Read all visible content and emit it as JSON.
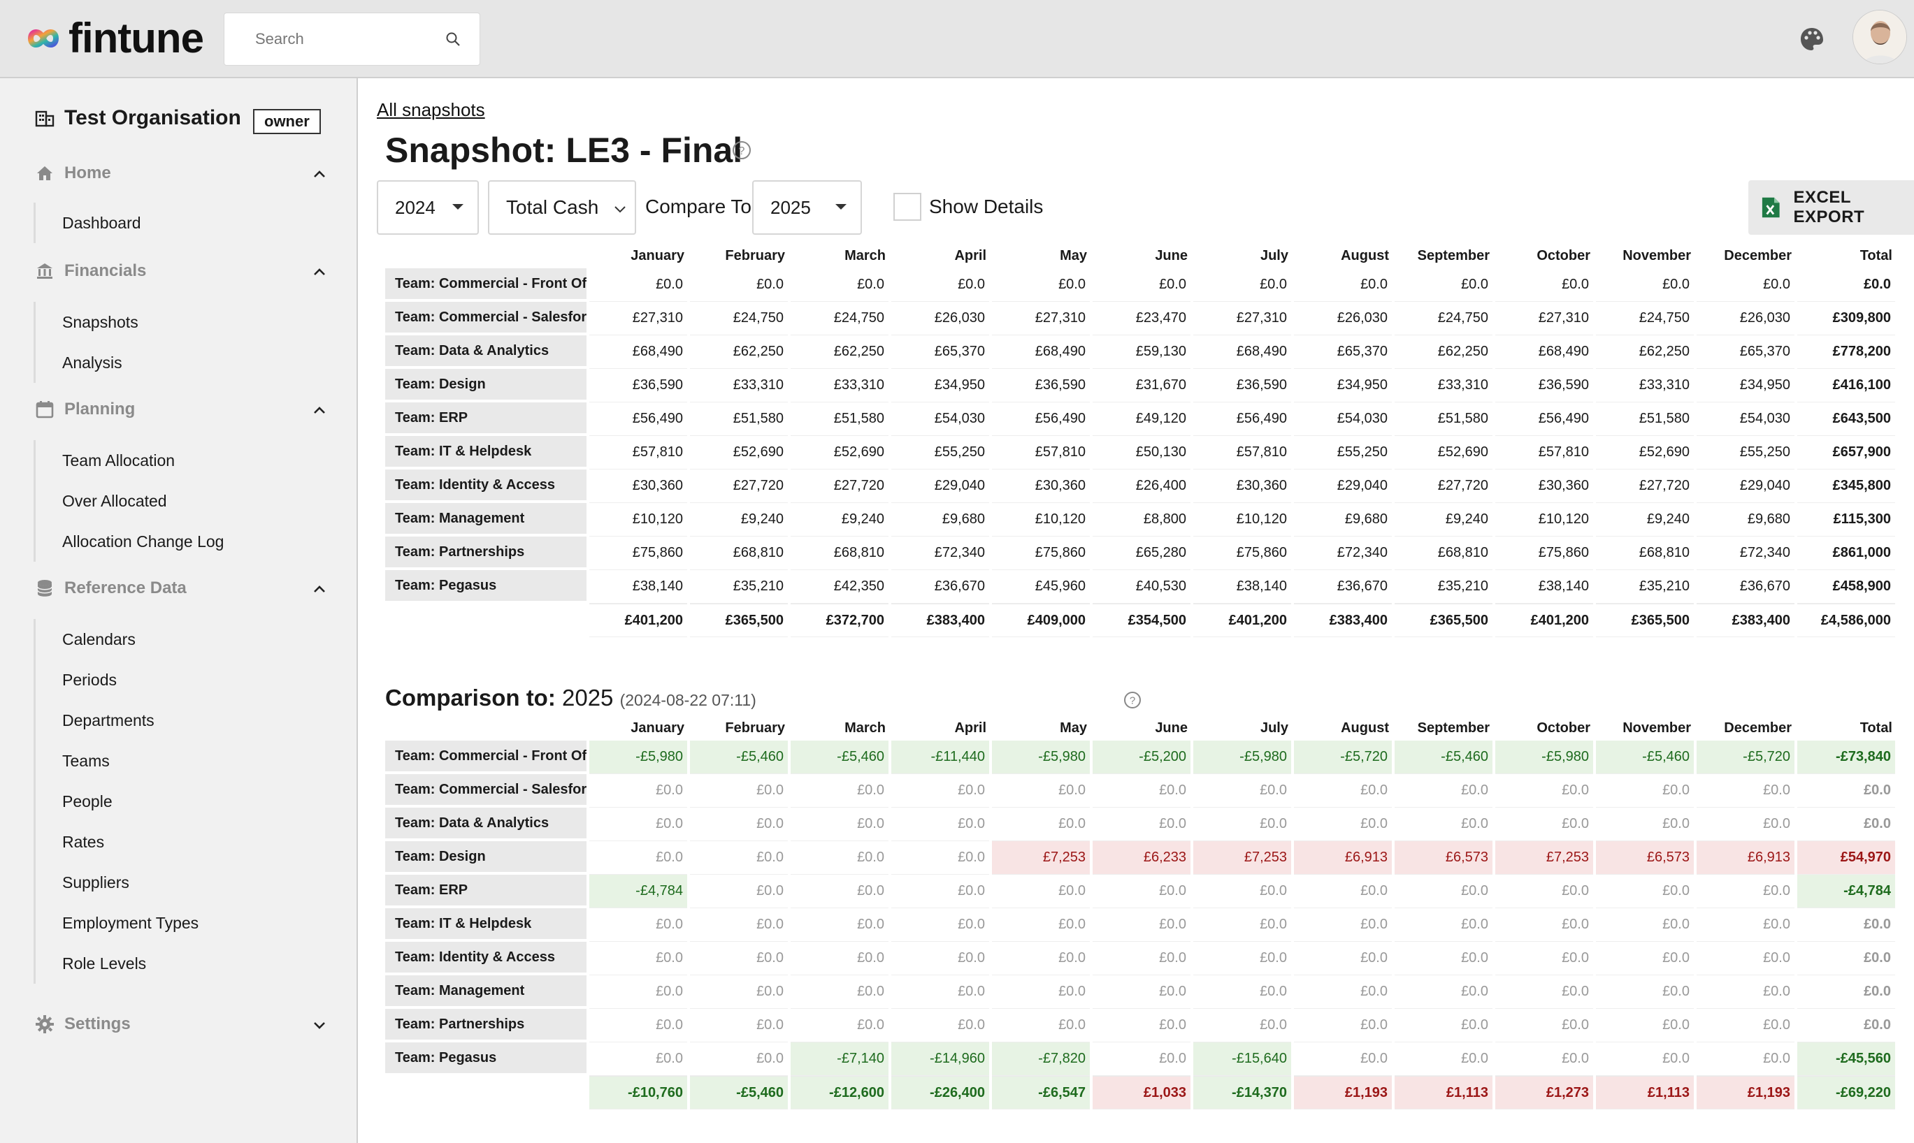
{
  "header": {
    "app_name": "fintune",
    "search_placeholder": "Search"
  },
  "sidebar": {
    "org_name": "Test Organisation",
    "org_role": "owner",
    "sections": [
      {
        "label": "Home",
        "icon": "home-icon",
        "items": [
          "Dashboard"
        ]
      },
      {
        "label": "Financials",
        "icon": "bank-icon",
        "items": [
          "Snapshots",
          "Analysis"
        ]
      },
      {
        "label": "Planning",
        "icon": "calendar-icon",
        "items": [
          "Team Allocation",
          "Over Allocated",
          "Allocation Change Log"
        ]
      },
      {
        "label": "Reference Data",
        "icon": "database-icon",
        "items": [
          "Calendars",
          "Periods",
          "Departments",
          "Teams",
          "People",
          "Rates",
          "Suppliers",
          "Employment Types",
          "Role Levels"
        ]
      },
      {
        "label": "Settings",
        "icon": "gear-icon",
        "items": []
      }
    ]
  },
  "main": {
    "breadcrumb": "All snapshots",
    "title": "Snapshot: LE3 - Final",
    "year_select": "2024",
    "metric_select": "Total Cash",
    "compare_label": "Compare To",
    "compare_select": "2025",
    "show_details_label": "Show Details",
    "export_label": "EXCEL EXPORT"
  },
  "columns": [
    "January",
    "February",
    "March",
    "April",
    "May",
    "June",
    "July",
    "August",
    "September",
    "October",
    "November",
    "December",
    "Total"
  ],
  "snapshot_table": {
    "rows": [
      {
        "team": "Team: Commercial - Front Office",
        "values": [
          "£0.0",
          "£0.0",
          "£0.0",
          "£0.0",
          "£0.0",
          "£0.0",
          "£0.0",
          "£0.0",
          "£0.0",
          "£0.0",
          "£0.0",
          "£0.0",
          "£0.0"
        ]
      },
      {
        "team": "Team: Commercial - Salesforce",
        "values": [
          "£27,310",
          "£24,750",
          "£24,750",
          "£26,030",
          "£27,310",
          "£23,470",
          "£27,310",
          "£26,030",
          "£24,750",
          "£27,310",
          "£24,750",
          "£26,030",
          "£309,800"
        ]
      },
      {
        "team": "Team: Data & Analytics",
        "values": [
          "£68,490",
          "£62,250",
          "£62,250",
          "£65,370",
          "£68,490",
          "£59,130",
          "£68,490",
          "£65,370",
          "£62,250",
          "£68,490",
          "£62,250",
          "£65,370",
          "£778,200"
        ]
      },
      {
        "team": "Team: Design",
        "values": [
          "£36,590",
          "£33,310",
          "£33,310",
          "£34,950",
          "£36,590",
          "£31,670",
          "£36,590",
          "£34,950",
          "£33,310",
          "£36,590",
          "£33,310",
          "£34,950",
          "£416,100"
        ]
      },
      {
        "team": "Team: ERP",
        "values": [
          "£56,490",
          "£51,580",
          "£51,580",
          "£54,030",
          "£56,490",
          "£49,120",
          "£56,490",
          "£54,030",
          "£51,580",
          "£56,490",
          "£51,580",
          "£54,030",
          "£643,500"
        ]
      },
      {
        "team": "Team: IT & Helpdesk",
        "values": [
          "£57,810",
          "£52,690",
          "£52,690",
          "£55,250",
          "£57,810",
          "£50,130",
          "£57,810",
          "£55,250",
          "£52,690",
          "£57,810",
          "£52,690",
          "£55,250",
          "£657,900"
        ]
      },
      {
        "team": "Team: Identity & Access",
        "values": [
          "£30,360",
          "£27,720",
          "£27,720",
          "£29,040",
          "£30,360",
          "£26,400",
          "£30,360",
          "£29,040",
          "£27,720",
          "£30,360",
          "£27,720",
          "£29,040",
          "£345,800"
        ]
      },
      {
        "team": "Team: Management",
        "values": [
          "£10,120",
          "£9,240",
          "£9,240",
          "£9,680",
          "£10,120",
          "£8,800",
          "£10,120",
          "£9,680",
          "£9,240",
          "£10,120",
          "£9,240",
          "£9,680",
          "£115,300"
        ]
      },
      {
        "team": "Team: Partnerships",
        "values": [
          "£75,860",
          "£68,810",
          "£68,810",
          "£72,340",
          "£75,860",
          "£65,280",
          "£75,860",
          "£72,340",
          "£68,810",
          "£75,860",
          "£68,810",
          "£72,340",
          "£861,000"
        ]
      },
      {
        "team": "Team: Pegasus",
        "values": [
          "£38,140",
          "£35,210",
          "£42,350",
          "£36,670",
          "£45,960",
          "£40,530",
          "£38,140",
          "£36,670",
          "£35,210",
          "£38,140",
          "£35,210",
          "£36,670",
          "£458,900"
        ]
      }
    ],
    "totals": [
      "£401,200",
      "£365,500",
      "£372,700",
      "£383,400",
      "£409,000",
      "£354,500",
      "£401,200",
      "£383,400",
      "£365,500",
      "£401,200",
      "£365,500",
      "£383,400",
      "£4,586,000"
    ]
  },
  "comparison": {
    "label": "Comparison to:",
    "year": "2025",
    "timestamp": "(2024-08-22 07:11)",
    "rows": [
      {
        "team": "Team: Commercial - Front Office",
        "values": [
          "-£5,980",
          "-£5,460",
          "-£5,460",
          "-£11,440",
          "-£5,980",
          "-£5,200",
          "-£5,980",
          "-£5,720",
          "-£5,460",
          "-£5,980",
          "-£5,460",
          "-£5,720",
          "-£73,840"
        ]
      },
      {
        "team": "Team: Commercial - Salesforce",
        "values": [
          "£0.0",
          "£0.0",
          "£0.0",
          "£0.0",
          "£0.0",
          "£0.0",
          "£0.0",
          "£0.0",
          "£0.0",
          "£0.0",
          "£0.0",
          "£0.0",
          "£0.0"
        ]
      },
      {
        "team": "Team: Data & Analytics",
        "values": [
          "£0.0",
          "£0.0",
          "£0.0",
          "£0.0",
          "£0.0",
          "£0.0",
          "£0.0",
          "£0.0",
          "£0.0",
          "£0.0",
          "£0.0",
          "£0.0",
          "£0.0"
        ]
      },
      {
        "team": "Team: Design",
        "values": [
          "£0.0",
          "£0.0",
          "£0.0",
          "£0.0",
          "£7,253",
          "£6,233",
          "£7,253",
          "£6,913",
          "£6,573",
          "£7,253",
          "£6,573",
          "£6,913",
          "£54,970"
        ]
      },
      {
        "team": "Team: ERP",
        "values": [
          "-£4,784",
          "£0.0",
          "£0.0",
          "£0.0",
          "£0.0",
          "£0.0",
          "£0.0",
          "£0.0",
          "£0.0",
          "£0.0",
          "£0.0",
          "£0.0",
          "-£4,784"
        ]
      },
      {
        "team": "Team: IT & Helpdesk",
        "values": [
          "£0.0",
          "£0.0",
          "£0.0",
          "£0.0",
          "£0.0",
          "£0.0",
          "£0.0",
          "£0.0",
          "£0.0",
          "£0.0",
          "£0.0",
          "£0.0",
          "£0.0"
        ]
      },
      {
        "team": "Team: Identity & Access",
        "values": [
          "£0.0",
          "£0.0",
          "£0.0",
          "£0.0",
          "£0.0",
          "£0.0",
          "£0.0",
          "£0.0",
          "£0.0",
          "£0.0",
          "£0.0",
          "£0.0",
          "£0.0"
        ]
      },
      {
        "team": "Team: Management",
        "values": [
          "£0.0",
          "£0.0",
          "£0.0",
          "£0.0",
          "£0.0",
          "£0.0",
          "£0.0",
          "£0.0",
          "£0.0",
          "£0.0",
          "£0.0",
          "£0.0",
          "£0.0"
        ]
      },
      {
        "team": "Team: Partnerships",
        "values": [
          "£0.0",
          "£0.0",
          "£0.0",
          "£0.0",
          "£0.0",
          "£0.0",
          "£0.0",
          "£0.0",
          "£0.0",
          "£0.0",
          "£0.0",
          "£0.0",
          "£0.0"
        ]
      },
      {
        "team": "Team: Pegasus",
        "values": [
          "£0.0",
          "£0.0",
          "-£7,140",
          "-£14,960",
          "-£7,820",
          "£0.0",
          "-£15,640",
          "£0.0",
          "£0.0",
          "£0.0",
          "£0.0",
          "£0.0",
          "-£45,560"
        ]
      }
    ],
    "totals": [
      "-£10,760",
      "-£5,460",
      "-£12,600",
      "-£26,400",
      "-£6,547",
      "£1,033",
      "-£14,370",
      "£1,193",
      "£1,113",
      "£1,273",
      "£1,113",
      "£1,193",
      "-£69,220"
    ]
  },
  "colors": {
    "negative_text": "#1e6b1e",
    "negative_bg": "#e7f3e4",
    "positive_text": "#9b1616",
    "positive_bg": "#f8e4e4",
    "zero_text": "#999999"
  }
}
